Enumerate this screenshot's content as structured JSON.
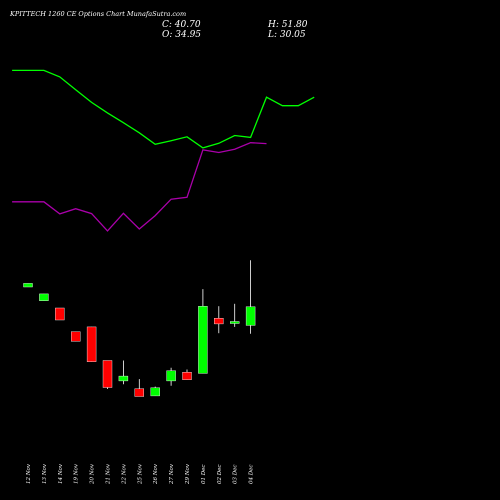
{
  "header": {
    "title": "KPITTECH 1260  CE Options  Chart MunafaSutra.com",
    "close": "C: 40.70",
    "open": "O: 34.95",
    "high": "H: 51.80",
    "low": "L: 30.05"
  },
  "colors": {
    "background": "#000000",
    "up": "#00ff00",
    "down": "#ff0000",
    "upper_line": "#00ff00",
    "lower_line": "#aa00aa",
    "wick": "#ffffff"
  },
  "chart_data": {
    "type": "candlestick",
    "categories": [
      "12 Nov",
      "13 Nov",
      "14 Nov",
      "19 Nov",
      "20 Nov",
      "21 Nov",
      "22 Nov",
      "25 Nov",
      "26 Nov",
      "27 Nov",
      "29 Nov",
      "01 Dec",
      "02 Dec",
      "03 Dec",
      "04 Dec"
    ],
    "candles": [
      {
        "open": 42.2,
        "high": 42.2,
        "low": 41.0,
        "close": 41.0,
        "dir": "up"
      },
      {
        "open": 38.7,
        "high": 38.7,
        "low": 36.4,
        "close": 36.4,
        "dir": "up"
      },
      {
        "open": 34.0,
        "high": 34.0,
        "low": 30.0,
        "close": 30.0,
        "dir": "down"
      },
      {
        "open": 26.1,
        "high": 26.1,
        "low": 22.9,
        "close": 22.9,
        "dir": "down"
      },
      {
        "open": 27.7,
        "high": 27.7,
        "low": 16.1,
        "close": 16.1,
        "dir": "down"
      },
      {
        "open": 16.5,
        "high": 16.5,
        "low": 7.0,
        "close": 7.5,
        "dir": "down"
      },
      {
        "open": 9.7,
        "high": 16.5,
        "low": 8.6,
        "close": 11.3,
        "dir": "up"
      },
      {
        "open": 7.1,
        "high": 10.3,
        "low": 4.5,
        "close": 4.5,
        "dir": "down"
      },
      {
        "open": 4.7,
        "high": 7.8,
        "low": 4.7,
        "close": 7.4,
        "dir": "up"
      },
      {
        "open": 9.7,
        "high": 14.1,
        "low": 8.1,
        "close": 13.1,
        "dir": "up"
      },
      {
        "open": 12.6,
        "high": 13.5,
        "low": 10.1,
        "close": 10.1,
        "dir": "down"
      },
      {
        "open": 12.2,
        "high": 40.3,
        "low": 12.2,
        "close": 34.6,
        "dir": "up"
      },
      {
        "open": 30.6,
        "high": 34.6,
        "low": 25.6,
        "close": 28.7,
        "dir": "down"
      },
      {
        "open": 29.0,
        "high": 35.4,
        "low": 27.7,
        "close": 29.5,
        "dir": "up"
      },
      {
        "open": 28.2,
        "high": 49.9,
        "low": 25.4,
        "close": 34.4,
        "dir": "up"
      }
    ],
    "upper_band": [
      {
        "x": -1,
        "y": 100.8
      },
      {
        "x": 0,
        "y": 100.8
      },
      {
        "x": 1,
        "y": 100.8
      },
      {
        "x": 2,
        "y": 98.8
      },
      {
        "x": 3,
        "y": 94.9
      },
      {
        "x": 4,
        "y": 91.0
      },
      {
        "x": 5,
        "y": 87.8
      },
      {
        "x": 6,
        "y": 84.8
      },
      {
        "x": 7,
        "y": 81.7
      },
      {
        "x": 8,
        "y": 78.2
      },
      {
        "x": 9,
        "y": 79.3
      },
      {
        "x": 10,
        "y": 80.5
      },
      {
        "x": 11,
        "y": 77.1
      },
      {
        "x": 12,
        "y": 78.5
      },
      {
        "x": 13,
        "y": 80.9
      },
      {
        "x": 14,
        "y": 80.3
      },
      {
        "x": 15,
        "y": 92.6
      },
      {
        "x": 16,
        "y": 90.0
      },
      {
        "x": 17,
        "y": 90.0
      },
      {
        "x": 18,
        "y": 92.6
      }
    ],
    "lower_band": [
      {
        "x": -1,
        "y": 60.6
      },
      {
        "x": 0,
        "y": 60.6
      },
      {
        "x": 1,
        "y": 60.6
      },
      {
        "x": 2,
        "y": 56.9
      },
      {
        "x": 3,
        "y": 58.5
      },
      {
        "x": 4,
        "y": 57.0
      },
      {
        "x": 5,
        "y": 51.7
      },
      {
        "x": 6,
        "y": 57.1
      },
      {
        "x": 7,
        "y": 52.3
      },
      {
        "x": 8,
        "y": 56.4
      },
      {
        "x": 9,
        "y": 61.4
      },
      {
        "x": 10,
        "y": 62.0
      },
      {
        "x": 11,
        "y": 76.5
      },
      {
        "x": 12,
        "y": 75.7
      },
      {
        "x": 13,
        "y": 76.7
      },
      {
        "x": 14,
        "y": 78.7
      },
      {
        "x": 15,
        "y": 78.4
      }
    ],
    "xlabel": "",
    "ylabel": "",
    "grid": false,
    "legend": "none"
  }
}
